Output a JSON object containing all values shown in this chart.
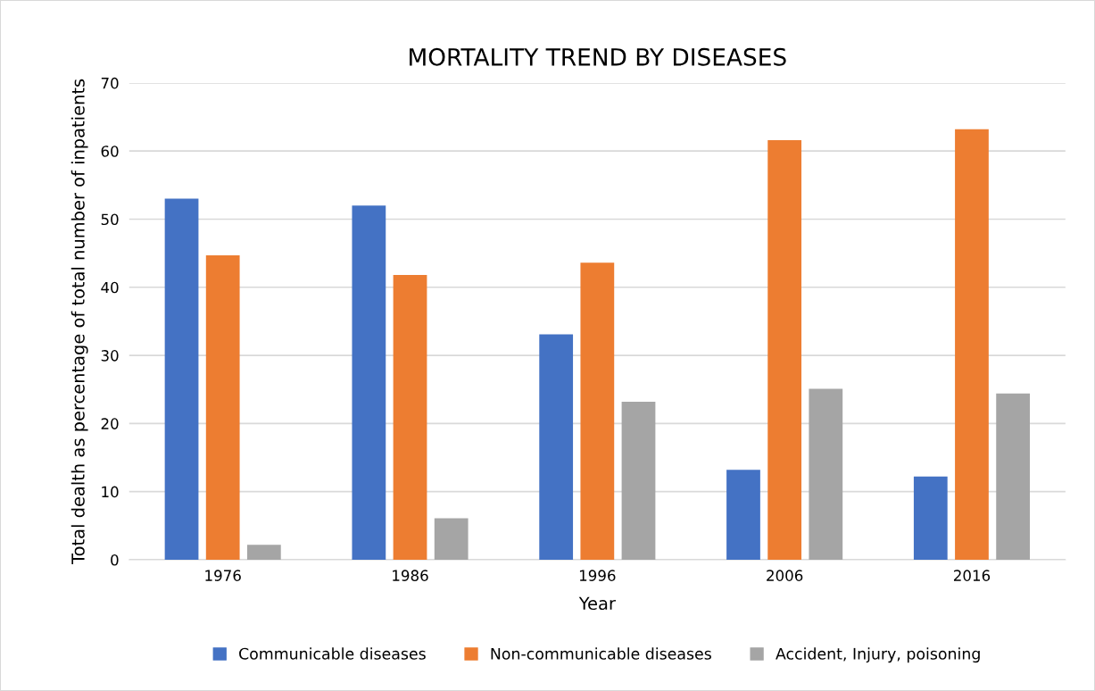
{
  "chart_data": {
    "type": "bar",
    "title": "MORTALITY TREND BY DISEASES",
    "xlabel": "Year",
    "ylabel": "Total dealth as percentage of total number of inpatients",
    "categories": [
      "1976",
      "1986",
      "1996",
      "2006",
      "2016"
    ],
    "series": [
      {
        "name": "Communicable diseases",
        "color": "#4472c4",
        "values": [
          53.0,
          52.0,
          33.1,
          13.2,
          12.2
        ]
      },
      {
        "name": "Non-communicable diseases",
        "color": "#ed7d31",
        "values": [
          44.7,
          41.8,
          43.6,
          61.6,
          63.2
        ]
      },
      {
        "name": "Accident, Injury, poisoning",
        "color": "#a5a5a5",
        "values": [
          2.2,
          6.1,
          23.2,
          25.1,
          24.4
        ]
      }
    ],
    "ylim": [
      0,
      70
    ],
    "yticks": [
      0,
      10,
      20,
      30,
      40,
      50,
      60,
      70
    ],
    "grid": "y",
    "legend": "bottom"
  }
}
